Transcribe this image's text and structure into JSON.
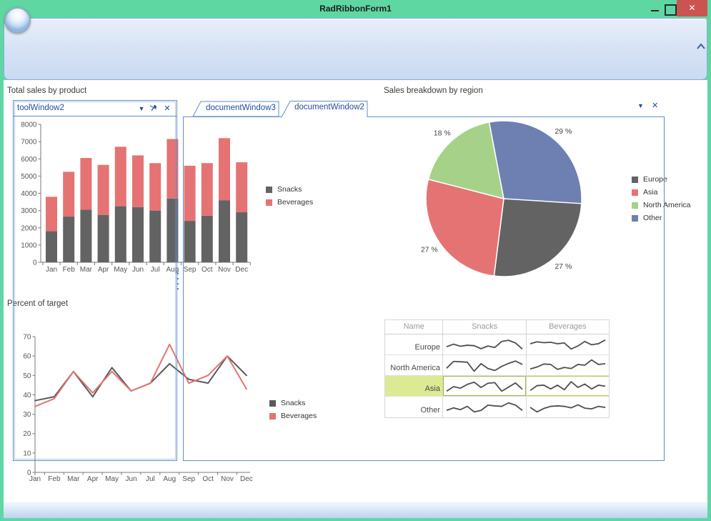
{
  "window": {
    "title": "RadRibbonForm1"
  },
  "icons": {
    "dropdown_caret": "▼",
    "close_x": "✕"
  },
  "tool_window": {
    "title": "toolWindow2"
  },
  "document_group": {
    "tabs": [
      {
        "label": "documentWindow3",
        "selected": false
      },
      {
        "label": "documentWindow2",
        "selected": true
      }
    ]
  },
  "colors": {
    "titlebar_green": "#5fd7a3",
    "close_red": "#cb5450",
    "panel_border_blue": "#5f8fc7",
    "tab_text_blue": "#1f4e96",
    "snacks_gray": "#636363",
    "beverages_red": "#e57373",
    "selection_yellow_green": "#dcea93",
    "selection_border": "#b9d23c"
  },
  "chart_data": [
    {
      "id": "total-sales-bar",
      "type": "bar",
      "stacked": true,
      "title": "Total sales by product",
      "categories": [
        "Jan",
        "Feb",
        "Mar",
        "Apr",
        "May",
        "Jun",
        "Jul",
        "Aug",
        "Sep",
        "Oct",
        "Nov",
        "Dec"
      ],
      "series": [
        {
          "name": "Snacks",
          "color": "#636363",
          "values": [
            1800,
            2650,
            3050,
            2750,
            3250,
            3200,
            3000,
            3700,
            2400,
            2700,
            3600,
            2900
          ]
        },
        {
          "name": "Beverages",
          "color": "#e57373",
          "values": [
            2000,
            2600,
            3000,
            2900,
            3450,
            3000,
            2750,
            3450,
            3200,
            3050,
            3600,
            2900
          ]
        }
      ],
      "ylim": [
        0,
        8000
      ],
      "ytick": 1000,
      "grid": false,
      "legend_position": "right"
    },
    {
      "id": "percent-of-target-line",
      "type": "line",
      "title": "Percent of target",
      "categories": [
        "Jan",
        "Feb",
        "Mar",
        "Apr",
        "May",
        "Jun",
        "Jul",
        "Aug",
        "Sep",
        "Oct",
        "Nov",
        "Dec"
      ],
      "series": [
        {
          "name": "Snacks",
          "color": "#5a5a5a",
          "values": [
            37,
            39,
            52,
            39,
            54,
            42,
            46,
            56,
            48,
            46,
            60,
            50
          ]
        },
        {
          "name": "Beverages",
          "color": "#e57373",
          "values": [
            34,
            38,
            52,
            41,
            52,
            42,
            46,
            66,
            46,
            50,
            60,
            43
          ]
        }
      ],
      "ylim": [
        0,
        70
      ],
      "ytick": 10,
      "grid": false,
      "legend_position": "right"
    },
    {
      "id": "sales-by-region-pie",
      "type": "pie",
      "title": "Sales breakdown by region",
      "slices": [
        {
          "label": "Europe",
          "value": 27,
          "color": "#636363"
        },
        {
          "label": "Asia",
          "value": 27,
          "color": "#e57373"
        },
        {
          "label": "North America",
          "value": 18,
          "color": "#a6d189"
        },
        {
          "label": "Other",
          "value": 29,
          "color": "#6e80b2"
        }
      ],
      "start_angle_deg": 0,
      "direction": "clockwise",
      "label_format": "{value} %",
      "legend_position": "right"
    },
    {
      "id": "region-spark-table",
      "type": "table",
      "columns": [
        "Name",
        "Snacks",
        "Beverages"
      ],
      "spark_color": "#4f4f4f",
      "rows": [
        {
          "name": "Europe",
          "snacks_spark": [
            0.35,
            0.52,
            0.38,
            0.45,
            0.42,
            0.22,
            0.4,
            0.3,
            0.7,
            0.78,
            0.6,
            0.2
          ],
          "beverages_spark": [
            0.55,
            0.68,
            0.62,
            0.65,
            0.55,
            0.6,
            0.2,
            0.4,
            0.7,
            0.48,
            0.55,
            0.8
          ]
        },
        {
          "name": "North America",
          "snacks_spark": [
            0.3,
            0.75,
            0.73,
            0.7,
            0.1,
            0.6,
            0.28,
            0.15,
            0.42,
            0.62,
            0.78,
            0.55
          ],
          "beverages_spark": [
            0.25,
            0.38,
            0.58,
            0.55,
            0.22,
            0.35,
            0.28,
            0.55,
            0.5,
            0.85,
            0.55,
            0.6
          ]
        },
        {
          "name": "Asia",
          "snacks_spark": [
            0.15,
            0.45,
            0.35,
            0.6,
            0.75,
            0.4,
            0.68,
            0.72,
            0.15,
            0.42,
            0.7,
            0.28
          ],
          "beverages_spark": [
            0.2,
            0.52,
            0.55,
            0.3,
            0.55,
            0.25,
            0.78,
            0.4,
            0.62,
            0.3,
            0.55,
            0.48
          ]
        },
        {
          "name": "Other",
          "snacks_spark": [
            0.25,
            0.42,
            0.3,
            0.52,
            0.15,
            0.25,
            0.6,
            0.55,
            0.52,
            0.75,
            0.6,
            0.25
          ],
          "beverages_spark": [
            0.45,
            0.15,
            0.38,
            0.52,
            0.55,
            0.52,
            0.42,
            0.62,
            0.4,
            0.35,
            0.52,
            0.45
          ]
        }
      ],
      "selected_row": "Asia",
      "selected_cell": {
        "row": "Asia",
        "column": "Snacks"
      }
    }
  ]
}
